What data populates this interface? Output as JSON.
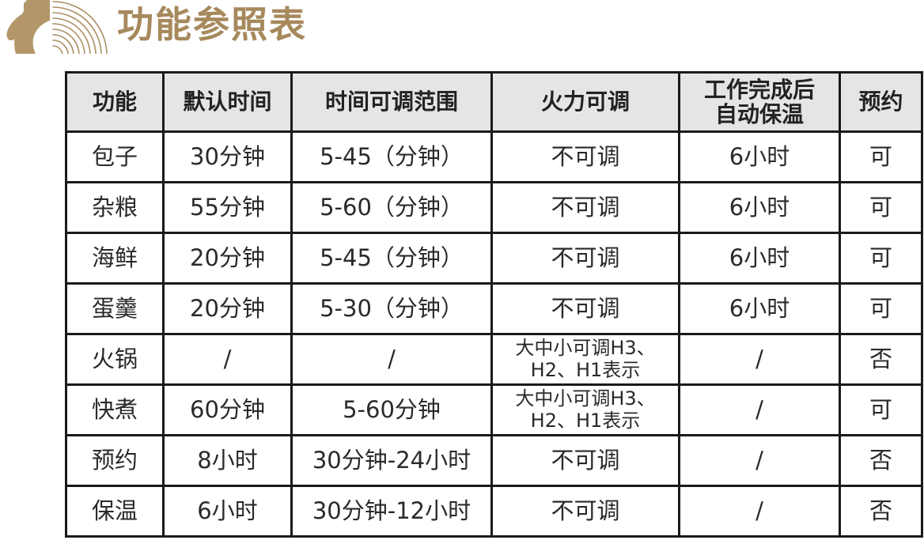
{
  "page": {
    "title": "功能参照表",
    "accent_color": "#a6895c"
  },
  "logo": {
    "name": "chef-steam-waves-logo",
    "color": "#b3976b"
  },
  "table": {
    "columns": [
      "功能",
      "默认时间",
      "时间可调范围",
      "火力可调",
      "工作完成后\n自动保温",
      "预约"
    ],
    "rows": [
      [
        "包子",
        "30分钟",
        "5-45（分钟）",
        "不可调",
        "6小时",
        "可"
      ],
      [
        "杂粮",
        "55分钟",
        "5-60（分钟）",
        "不可调",
        "6小时",
        "可"
      ],
      [
        "海鲜",
        "20分钟",
        "5-45（分钟）",
        "不可调",
        "6小时",
        "可"
      ],
      [
        "蛋羹",
        "20分钟",
        "5-30（分钟）",
        "不可调",
        "6小时",
        "可"
      ],
      [
        "火锅",
        "/",
        "/",
        "大中小可调H3、\nH2、H1表示",
        "/",
        "否"
      ],
      [
        "快煮",
        "60分钟",
        "5-60分钟",
        "大中小可调H3、\nH2、H1表示",
        "/",
        "可"
      ],
      [
        "预约",
        "8小时",
        "30分钟-24小时",
        "不可调",
        "/",
        "否"
      ],
      [
        "保温",
        "6小时",
        "30分钟-12小时",
        "不可调",
        "/",
        "否"
      ]
    ],
    "colors": {
      "header_bg": "#e5e5e5",
      "border": "#1a1a1a",
      "text": "#2a2a2a"
    }
  }
}
